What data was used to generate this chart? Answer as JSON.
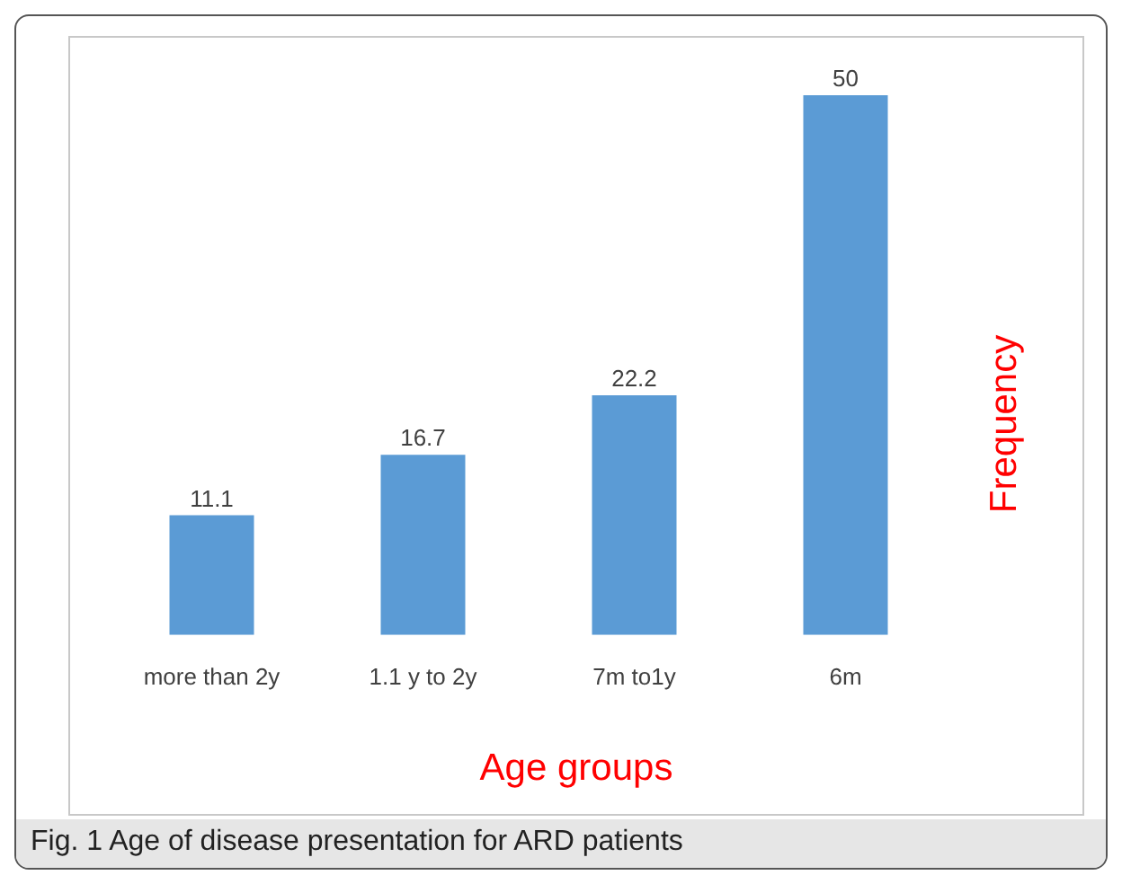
{
  "chart_data": {
    "type": "bar",
    "categories": [
      "more than 2y",
      "1.1 y to 2y",
      "7m to1y",
      "6m"
    ],
    "values": [
      11.1,
      16.7,
      22.2,
      50
    ],
    "color": "#5b9bd5",
    "data_labels": true,
    "xlabel": "Age groups",
    "ylabel": "Frequency",
    "legend": false,
    "grid": false,
    "annotations": [
      "Fig. 1  Age of disease presentation for ARD patients"
    ]
  }
}
